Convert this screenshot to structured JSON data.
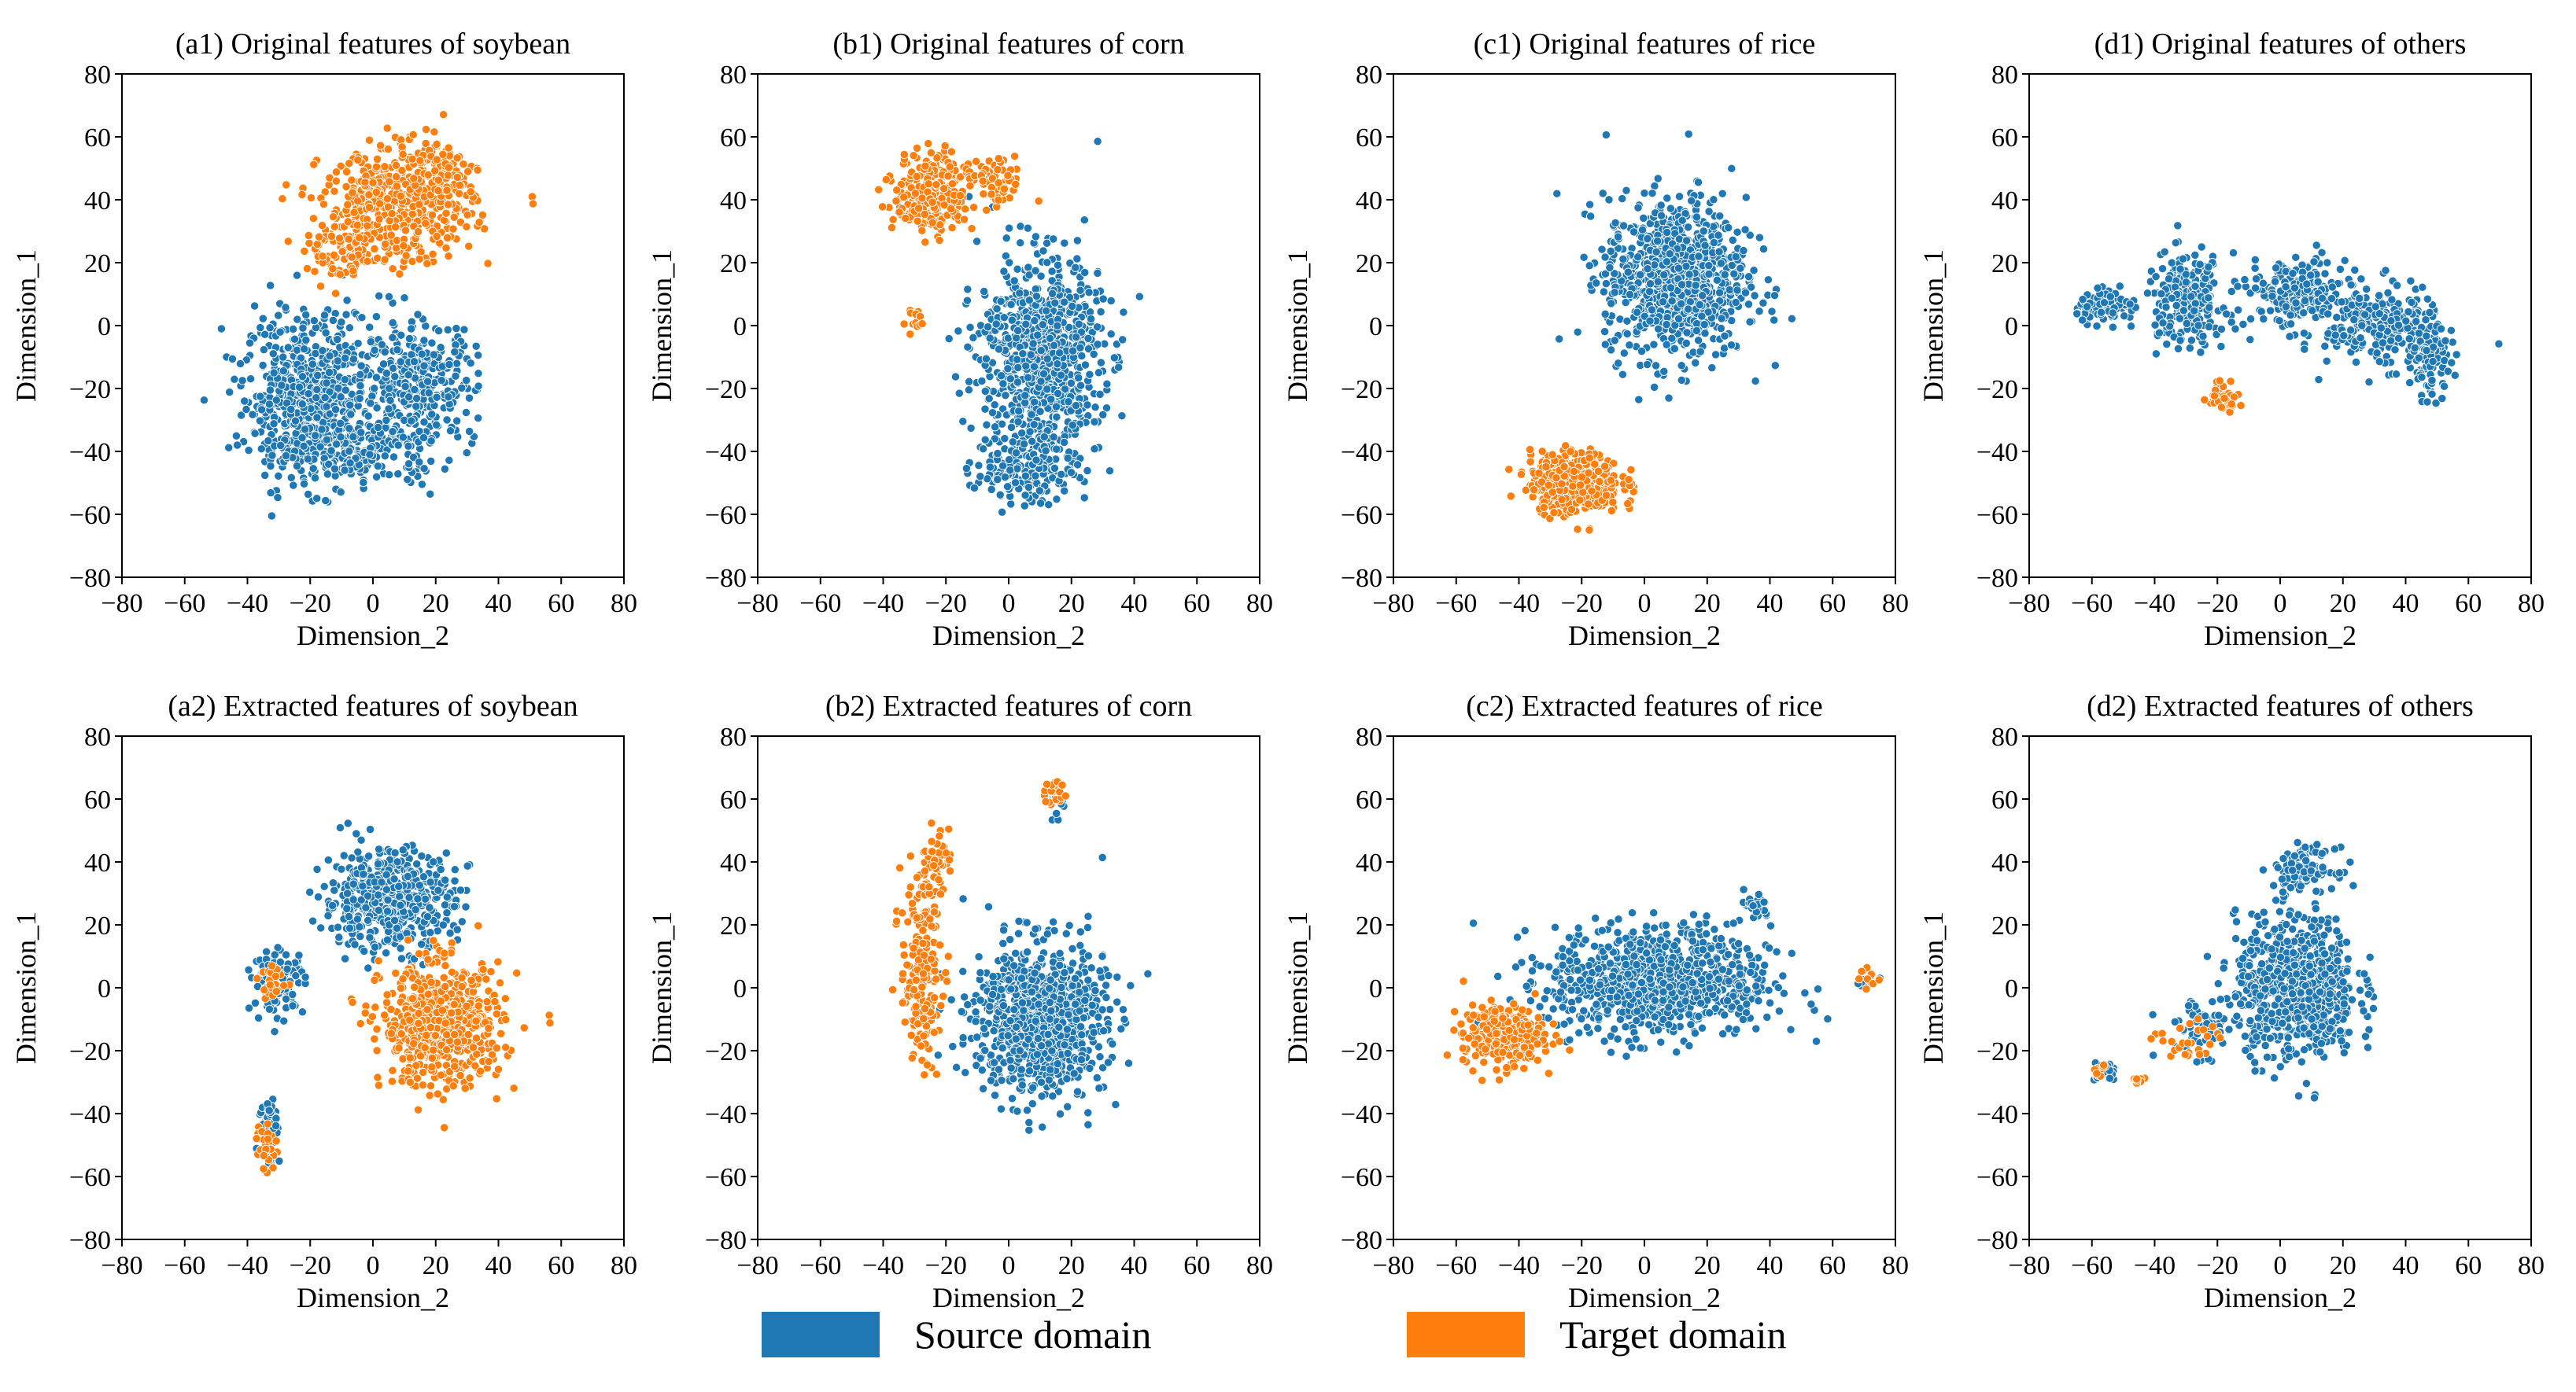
{
  "colors": {
    "source": "#1f77b4",
    "target": "#ff7f0e"
  },
  "legend": {
    "source_label": "Source domain",
    "target_label": "Target domain"
  },
  "chart_data": [
    {
      "type": "scatter",
      "title": "(a1) Original features of soybean",
      "xlabel": "Dimension_2",
      "ylabel": "Dimension_1",
      "xlim": [
        -80,
        80
      ],
      "ylim": [
        -80,
        80
      ],
      "xticks": [
        "−80",
        "−60",
        "−40",
        "−20",
        "0",
        "20",
        "40",
        "60",
        "80"
      ],
      "yticks": [
        "−80",
        "−60",
        "−40",
        "−20",
        "0",
        "20",
        "40",
        "60",
        "80"
      ],
      "grid": false,
      "series": [
        {
          "name": "Source domain",
          "clusters": [
            {
              "cx": -20,
              "cy": -22,
              "sx": 13,
              "sy": 16,
              "n": 620
            },
            {
              "cx": 15,
              "cy": -18,
              "sx": 11,
              "sy": 12,
              "n": 320
            },
            {
              "cx": -5,
              "cy": -40,
              "sx": 16,
              "sy": 7,
              "n": 200
            }
          ]
        },
        {
          "name": "Target domain",
          "clusters": [
            {
              "cx": 8,
              "cy": 38,
              "sx": 15,
              "sy": 11,
              "n": 520
            },
            {
              "cx": -10,
              "cy": 22,
              "sx": 7,
              "sy": 5,
              "n": 70
            },
            {
              "cx": 20,
              "cy": 50,
              "sx": 8,
              "sy": 6,
              "n": 90
            }
          ]
        }
      ]
    },
    {
      "type": "scatter",
      "title": "(b1) Original features of corn",
      "xlabel": "Dimension_2",
      "ylabel": "Dimension_1",
      "xlim": [
        -80,
        80
      ],
      "ylim": [
        -80,
        80
      ],
      "xticks": [
        "−80",
        "−60",
        "−40",
        "−20",
        "0",
        "20",
        "40",
        "60",
        "80"
      ],
      "yticks": [
        "−80",
        "−60",
        "−40",
        "−20",
        "0",
        "20",
        "40",
        "60",
        "80"
      ],
      "grid": false,
      "series": [
        {
          "name": "Source domain",
          "clusters": [
            {
              "cx": 10,
              "cy": -10,
              "sx": 12,
              "sy": 20,
              "n": 850
            },
            {
              "cx": 5,
              "cy": -45,
              "sx": 10,
              "sy": 7,
              "n": 160
            }
          ]
        },
        {
          "name": "Target domain",
          "clusters": [
            {
              "cx": -25,
              "cy": 42,
              "sx": 7,
              "sy": 8,
              "n": 260
            },
            {
              "cx": -5,
              "cy": 45,
              "sx": 6,
              "sy": 5,
              "n": 70
            },
            {
              "cx": -30,
              "cy": 2,
              "sx": 2,
              "sy": 3,
              "n": 14
            }
          ]
        }
      ]
    },
    {
      "type": "scatter",
      "title": "(c1) Original features of rice",
      "xlabel": "Dimension_2",
      "ylabel": "Dimension_1",
      "xlim": [
        -80,
        80
      ],
      "ylim": [
        -80,
        80
      ],
      "xticks": [
        "−80",
        "−60",
        "−40",
        "−20",
        "0",
        "20",
        "40",
        "60",
        "80"
      ],
      "yticks": [
        "−80",
        "−60",
        "−40",
        "−20",
        "0",
        "20",
        "40",
        "60",
        "80"
      ],
      "grid": false,
      "series": [
        {
          "name": "Source domain",
          "clusters": [
            {
              "cx": 10,
              "cy": 15,
              "sx": 14,
              "sy": 16,
              "n": 900
            }
          ]
        },
        {
          "name": "Target domain",
          "clusters": [
            {
              "cx": -22,
              "cy": -50,
              "sx": 9,
              "sy": 6,
              "n": 420
            }
          ]
        }
      ]
    },
    {
      "type": "scatter",
      "title": "(d1) Original features of others",
      "xlabel": "Dimension_2",
      "ylabel": "Dimension_1",
      "xlim": [
        -80,
        80
      ],
      "ylim": [
        -80,
        80
      ],
      "xticks": [
        "−80",
        "−60",
        "−40",
        "−20",
        "0",
        "20",
        "40",
        "60",
        "80"
      ],
      "yticks": [
        "−80",
        "−60",
        "−40",
        "−20",
        "0",
        "20",
        "40",
        "60",
        "80"
      ],
      "grid": false,
      "series": [
        {
          "name": "Source domain",
          "clusters": [
            {
              "cx": -55,
              "cy": 6,
              "sx": 6,
              "sy": 3,
              "n": 90
            },
            {
              "cx": -30,
              "cy": 8,
              "sx": 8,
              "sy": 9,
              "n": 230
            },
            {
              "cx": 5,
              "cy": 10,
              "sx": 10,
              "sy": 7,
              "n": 200
            },
            {
              "cx": 32,
              "cy": 0,
              "sx": 11,
              "sy": 8,
              "n": 260
            },
            {
              "cx": 48,
              "cy": -12,
              "sx": 4,
              "sy": 7,
              "n": 90
            }
          ]
        },
        {
          "name": "Target domain",
          "clusters": [
            {
              "cx": -18,
              "cy": -22,
              "sx": 3,
              "sy": 3,
              "n": 55
            }
          ]
        }
      ]
    },
    {
      "type": "scatter",
      "title": "(a2) Extracted features of soybean",
      "xlabel": "Dimension_2",
      "ylabel": "Dimension_1",
      "xlim": [
        -80,
        80
      ],
      "ylim": [
        -80,
        80
      ],
      "xticks": [
        "−80",
        "−60",
        "−40",
        "−20",
        "0",
        "20",
        "40",
        "60",
        "80"
      ],
      "yticks": [
        "−80",
        "−60",
        "−40",
        "−20",
        "0",
        "20",
        "40",
        "60",
        "80"
      ],
      "grid": false,
      "series": [
        {
          "name": "Source domain",
          "clusters": [
            {
              "cx": 5,
              "cy": 28,
              "sx": 13,
              "sy": 10,
              "n": 520
            },
            {
              "cx": -30,
              "cy": 2,
              "sx": 5,
              "sy": 6,
              "n": 120
            },
            {
              "cx": -33,
              "cy": -45,
              "sx": 2,
              "sy": 7,
              "n": 70
            }
          ]
        },
        {
          "name": "Target domain",
          "clusters": [
            {
              "cx": 22,
              "cy": -12,
              "sx": 12,
              "sy": 12,
              "n": 620
            },
            {
              "cx": -34,
              "cy": -50,
              "sx": 2,
              "sy": 5,
              "n": 25
            },
            {
              "cx": -32,
              "cy": 2,
              "sx": 3,
              "sy": 4,
              "n": 20
            }
          ]
        }
      ]
    },
    {
      "type": "scatter",
      "title": "(b2) Extracted features of corn",
      "xlabel": "Dimension_2",
      "ylabel": "Dimension_1",
      "xlim": [
        -80,
        80
      ],
      "ylim": [
        -80,
        80
      ],
      "xticks": [
        "−80",
        "−60",
        "−40",
        "−20",
        "0",
        "20",
        "40",
        "60",
        "80"
      ],
      "yticks": [
        "−80",
        "−60",
        "−40",
        "−20",
        "0",
        "20",
        "40",
        "60",
        "80"
      ],
      "grid": false,
      "series": [
        {
          "name": "Source domain",
          "clusters": [
            {
              "cx": 10,
              "cy": -10,
              "sx": 13,
              "sy": 15,
              "n": 900
            },
            {
              "cx": 16,
              "cy": 60,
              "sx": 2,
              "sy": 3,
              "n": 20
            }
          ]
        },
        {
          "name": "Target domain",
          "clusters": [
            {
              "cx": -28,
              "cy": 5,
              "sx": 4,
              "sy": 18,
              "n": 200
            },
            {
              "cx": -24,
              "cy": 40,
              "sx": 3,
              "sy": 6,
              "n": 45
            },
            {
              "cx": 15,
              "cy": 62,
              "sx": 2,
              "sy": 3,
              "n": 20
            }
          ]
        }
      ]
    },
    {
      "type": "scatter",
      "title": "(c2) Extracted features of rice",
      "xlabel": "Dimension_2",
      "ylabel": "Dimension_1",
      "xlim": [
        -80,
        80
      ],
      "ylim": [
        -80,
        80
      ],
      "xticks": [
        "−80",
        "−60",
        "−40",
        "−20",
        "0",
        "20",
        "40",
        "60",
        "80"
      ],
      "yticks": [
        "−80",
        "−60",
        "−40",
        "−20",
        "0",
        "20",
        "40",
        "60",
        "80"
      ],
      "grid": false,
      "series": [
        {
          "name": "Source domain",
          "clusters": [
            {
              "cx": 5,
              "cy": 2,
              "sx": 22,
              "sy": 11,
              "n": 900
            },
            {
              "cx": 35,
              "cy": 26,
              "sx": 3,
              "sy": 3,
              "n": 25
            },
            {
              "cx": 70,
              "cy": 3,
              "sx": 3,
              "sy": 2,
              "n": 12
            }
          ]
        },
        {
          "name": "Target domain",
          "clusters": [
            {
              "cx": -45,
              "cy": -15,
              "sx": 8,
              "sy": 6,
              "n": 300
            },
            {
              "cx": 72,
              "cy": 3,
              "sx": 2,
              "sy": 2,
              "n": 10
            }
          ]
        }
      ]
    },
    {
      "type": "scatter",
      "title": "(d2) Extracted features of others",
      "xlabel": "Dimension_2",
      "ylabel": "Dimension_1",
      "xlim": [
        -80,
        80
      ],
      "ylim": [
        -80,
        80
      ],
      "xticks": [
        "−80",
        "−60",
        "−40",
        "−20",
        "0",
        "20",
        "40",
        "60",
        "80"
      ],
      "yticks": [
        "−80",
        "−60",
        "−40",
        "−20",
        "0",
        "20",
        "40",
        "60",
        "80"
      ],
      "grid": false,
      "series": [
        {
          "name": "Source domain",
          "clusters": [
            {
              "cx": 5,
              "cy": 0,
              "sx": 12,
              "sy": 14,
              "n": 750
            },
            {
              "cx": 8,
              "cy": 38,
              "sx": 6,
              "sy": 4,
              "n": 100
            },
            {
              "cx": -55,
              "cy": -27,
              "sx": 3,
              "sy": 2,
              "n": 20
            },
            {
              "cx": -25,
              "cy": -12,
              "sx": 8,
              "sy": 6,
              "n": 60
            }
          ]
        },
        {
          "name": "Target domain",
          "clusters": [
            {
              "cx": -57,
              "cy": -27,
              "sx": 2,
              "sy": 2,
              "n": 10
            },
            {
              "cx": -30,
              "cy": -18,
              "sx": 6,
              "sy": 5,
              "n": 30
            },
            {
              "cx": -45,
              "cy": -29,
              "sx": 2,
              "sy": 1,
              "n": 8
            }
          ]
        }
      ]
    }
  ]
}
